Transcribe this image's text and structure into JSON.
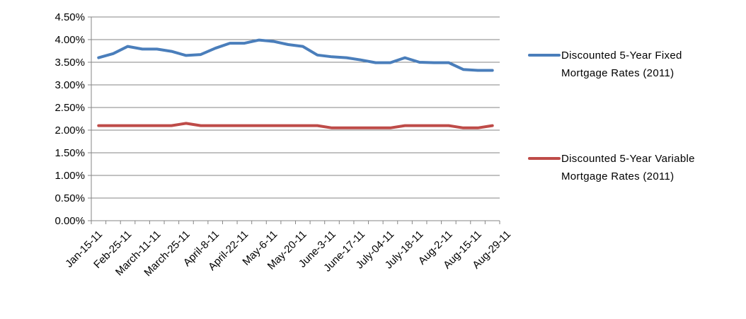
{
  "chart_data": {
    "type": "line",
    "title": "",
    "xlabel": "",
    "ylabel": "",
    "ylim": [
      0,
      4.5
    ],
    "y_ticks": [
      "0.00%",
      "0.50%",
      "1.00%",
      "1.50%",
      "2.00%",
      "2.50%",
      "3.00%",
      "3.50%",
      "4.00%",
      "4.50%"
    ],
    "y_tick_values": [
      0,
      0.5,
      1.0,
      1.5,
      2.0,
      2.5,
      3.0,
      3.5,
      4.0,
      4.5
    ],
    "grid": "horizontal",
    "legend_position": "right",
    "x_tick_labels": [
      "Jan-15-11",
      "Feb-25-11",
      "March-11-11",
      "March-25-11",
      "April-8-11",
      "April-22-11",
      "May-6-11",
      "May-20-11",
      "June-3-11",
      "June-17-11",
      "July-04-11",
      "July-18-11",
      "Aug-2-11",
      "Aug-15-11",
      "Aug-29-11"
    ],
    "point_count": 28,
    "series": [
      {
        "name": "Discounted 5-Year Fixed Mortgage Rates (2011)",
        "legend_lines": [
          "Discounted 5-Year Fixed",
          "Mortgage Rates (2011)"
        ],
        "color": "#4a7ebb",
        "values": [
          3.6,
          3.69,
          3.85,
          3.79,
          3.79,
          3.74,
          3.65,
          3.67,
          3.81,
          3.92,
          3.92,
          3.99,
          3.96,
          3.89,
          3.85,
          3.66,
          3.62,
          3.6,
          3.55,
          3.49,
          3.49,
          3.6,
          3.5,
          3.49,
          3.49,
          3.34,
          3.32,
          3.32
        ]
      },
      {
        "name": "Discounted 5-Year Variable Mortgage Rates (2011)",
        "legend_lines": [
          "Discounted 5-Year Variable",
          "Mortgage Rates (2011)"
        ],
        "color": "#be4b48",
        "values": [
          2.1,
          2.1,
          2.1,
          2.1,
          2.1,
          2.1,
          2.15,
          2.1,
          2.1,
          2.1,
          2.1,
          2.1,
          2.1,
          2.1,
          2.1,
          2.1,
          2.05,
          2.05,
          2.05,
          2.05,
          2.05,
          2.1,
          2.1,
          2.1,
          2.1,
          2.05,
          2.05,
          2.1
        ]
      }
    ]
  }
}
